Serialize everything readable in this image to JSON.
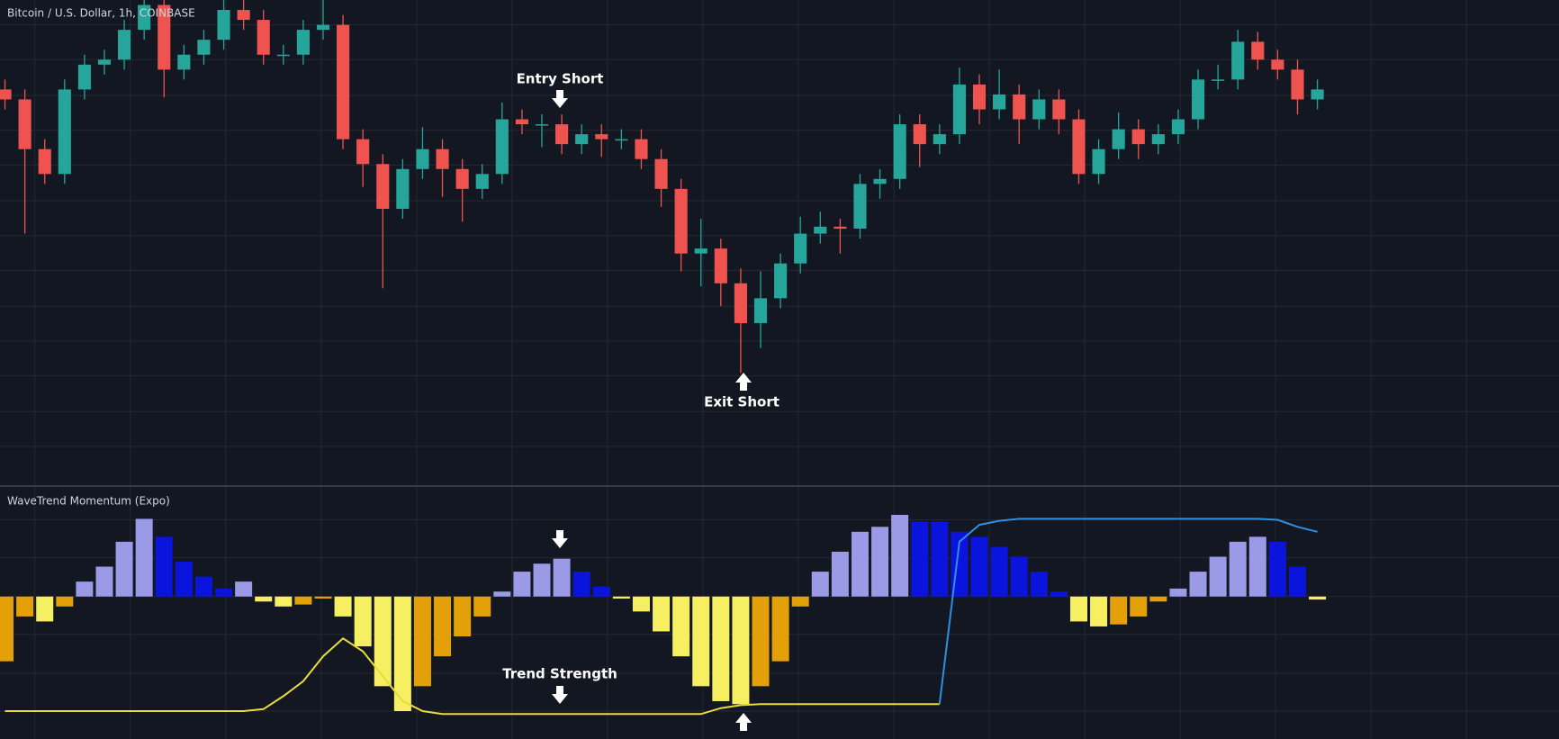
{
  "chart_data": [
    {
      "type": "candlestick",
      "title": "Bitcoin / U.S. Dollar, 1h, COINBASE",
      "x": [
        0,
        1,
        2,
        3,
        4,
        5,
        6,
        7,
        8,
        9,
        10,
        11,
        12,
        13,
        14,
        15,
        16,
        17,
        18,
        19,
        20,
        21,
        22,
        23,
        24,
        25,
        26,
        27,
        28,
        29,
        30,
        31,
        32,
        33,
        34,
        35,
        36,
        37,
        38,
        39,
        40,
        41,
        42,
        43,
        44,
        45,
        46,
        47,
        48,
        49,
        50,
        51,
        52,
        53,
        54,
        55,
        56,
        57,
        58,
        59,
        60,
        61,
        62,
        63,
        64,
        65,
        66
      ],
      "open": [
        398,
        388,
        338,
        313,
        398,
        423,
        428,
        458,
        483,
        418,
        433,
        448,
        478,
        468,
        433,
        433,
        458,
        463,
        348,
        323,
        278,
        318,
        338,
        318,
        298,
        313,
        368,
        363,
        363,
        343,
        353,
        348,
        348,
        328,
        298,
        233,
        238,
        203,
        163,
        188,
        223,
        253,
        260,
        258,
        303,
        308,
        363,
        343,
        353,
        403,
        378,
        393,
        368,
        388,
        368,
        313,
        338,
        358,
        343,
        353,
        368,
        408,
        408,
        446,
        428,
        418,
        388
      ],
      "high": [
        408,
        398,
        348,
        408,
        433,
        438,
        468,
        495,
        493,
        443,
        458,
        490,
        488,
        478,
        443,
        468,
        488,
        473,
        358,
        333,
        328,
        360,
        348,
        328,
        323,
        385,
        378,
        373,
        373,
        363,
        363,
        358,
        358,
        338,
        308,
        268,
        248,
        218,
        215,
        233,
        270,
        275,
        268,
        313,
        318,
        373,
        373,
        363,
        420,
        413,
        418,
        403,
        398,
        398,
        378,
        348,
        375,
        368,
        363,
        378,
        418,
        423,
        458,
        456,
        438,
        428,
        408
      ],
      "low": [
        378,
        253,
        303,
        303,
        388,
        413,
        418,
        448,
        390,
        408,
        423,
        438,
        458,
        423,
        423,
        423,
        448,
        338,
        300,
        198,
        268,
        308,
        290,
        265,
        288,
        303,
        353,
        340,
        333,
        333,
        330,
        338,
        318,
        280,
        215,
        200,
        180,
        113,
        138,
        178,
        213,
        243,
        233,
        248,
        288,
        298,
        320,
        333,
        343,
        363,
        368,
        343,
        358,
        353,
        303,
        303,
        328,
        328,
        333,
        343,
        358,
        398,
        398,
        418,
        408,
        373,
        378
      ],
      "close": [
        388,
        338,
        313,
        398,
        423,
        428,
        458,
        483,
        418,
        433,
        448,
        478,
        468,
        433,
        433,
        458,
        463,
        348,
        323,
        278,
        318,
        338,
        318,
        298,
        313,
        368,
        363,
        363,
        343,
        353,
        348,
        348,
        328,
        298,
        233,
        238,
        203,
        163,
        188,
        223,
        253,
        260,
        258,
        303,
        308,
        363,
        343,
        353,
        403,
        378,
        393,
        368,
        388,
        368,
        313,
        338,
        358,
        343,
        353,
        368,
        408,
        408,
        446,
        428,
        418,
        388,
        398
      ],
      "up_color": "#26a69a",
      "down_color": "#ef5350",
      "xlim": [
        -0.25,
        78.15
      ],
      "xticks": [
        1.5,
        6.3,
        11.1,
        15.9,
        20.7,
        25.5,
        30.3,
        35.1,
        39.9,
        44.7,
        49.5,
        54.3,
        59.1,
        63.9,
        68.7,
        73.5
      ],
      "ylim": [
        0,
        488
      ],
      "yticks": [
        463,
        428,
        392,
        357,
        322,
        286,
        251,
        216,
        180,
        145,
        110,
        74,
        39
      ],
      "grid": true,
      "annotations": [
        "Entry Short",
        "Exit Short"
      ]
    },
    {
      "type": "bar",
      "title": "WaveTrend Momentum (Expo)",
      "x": [
        0,
        1,
        2,
        3,
        4,
        5,
        6,
        7,
        8,
        9,
        10,
        11,
        12,
        13,
        14,
        15,
        16,
        17,
        18,
        19,
        20,
        21,
        22,
        23,
        24,
        25,
        26,
        27,
        28,
        29,
        30,
        31,
        32,
        33,
        34,
        35,
        36,
        37,
        38,
        39,
        40,
        41,
        42,
        43,
        44,
        45,
        46,
        47,
        48,
        49,
        50,
        51,
        52,
        53,
        54,
        55,
        56,
        57,
        58,
        59,
        60,
        61,
        62,
        63,
        64,
        65,
        66
      ],
      "values": [
        -65,
        -20,
        -25,
        -10,
        15,
        30,
        55,
        78,
        60,
        35,
        20,
        8,
        15,
        -5,
        -10,
        -8,
        -2,
        -20,
        -50,
        -90,
        -115,
        -90,
        -60,
        -40,
        -20,
        5,
        25,
        33,
        38,
        25,
        10,
        -2,
        -15,
        -35,
        -60,
        -90,
        -105,
        -108,
        -90,
        -65,
        -10,
        25,
        45,
        65,
        70,
        82,
        75,
        75,
        65,
        60,
        50,
        40,
        25,
        5,
        -25,
        -30,
        -28,
        -20,
        -5,
        8,
        25,
        40,
        55,
        60,
        55,
        30,
        -3
      ],
      "colors": {
        "positive_rising": "#9a9ae6",
        "positive_falling": "#0a14dc",
        "negative_falling": "#f7ef62",
        "negative_rising": "#e3a008"
      },
      "lines": [
        {
          "color": "#e8dc3a",
          "values": [
            -115,
            -115,
            -115,
            -115,
            -115,
            -115,
            -115,
            -115,
            -115,
            -115,
            -115,
            -115,
            -115,
            -113,
            -100,
            -85,
            -60,
            -42,
            -55,
            -80,
            -105,
            -115,
            -118,
            -118,
            -118,
            -118,
            -118,
            -118,
            -118,
            -118,
            -118,
            -118,
            -118,
            -118,
            -118,
            -118,
            -112,
            -109,
            -108,
            -108,
            -108,
            -108,
            -108,
            -108,
            -108,
            -108,
            -108,
            -108,
            null,
            null,
            null,
            null,
            null,
            null,
            null,
            null,
            null,
            null,
            null,
            null,
            null,
            null,
            null,
            null,
            null,
            null,
            null
          ]
        },
        {
          "color": "#2f8fe0",
          "values": [
            null,
            null,
            null,
            null,
            null,
            null,
            null,
            null,
            null,
            null,
            null,
            null,
            null,
            null,
            null,
            null,
            null,
            null,
            null,
            null,
            null,
            null,
            null,
            null,
            null,
            null,
            null,
            null,
            null,
            null,
            null,
            null,
            null,
            null,
            null,
            null,
            null,
            null,
            null,
            null,
            null,
            null,
            null,
            null,
            null,
            null,
            null,
            -108,
            55,
            72,
            76,
            78,
            78,
            78,
            78,
            78,
            78,
            78,
            78,
            78,
            78,
            78,
            78,
            78,
            77,
            70,
            65
          ]
        }
      ],
      "xlim": [
        -0.25,
        78.15
      ],
      "xticks": [
        1.5,
        6.3,
        11.1,
        15.9,
        20.7,
        25.5,
        30.3,
        35.1,
        39.9,
        44.7,
        49.5,
        54.3,
        59.1,
        63.9,
        68.7,
        73.5
      ],
      "ylim": [
        -143,
        110
      ],
      "yticks": [
        77,
        39,
        0,
        -38,
        -77,
        -115
      ],
      "grid": true,
      "annotations": [
        "Trend Strength"
      ]
    }
  ]
}
